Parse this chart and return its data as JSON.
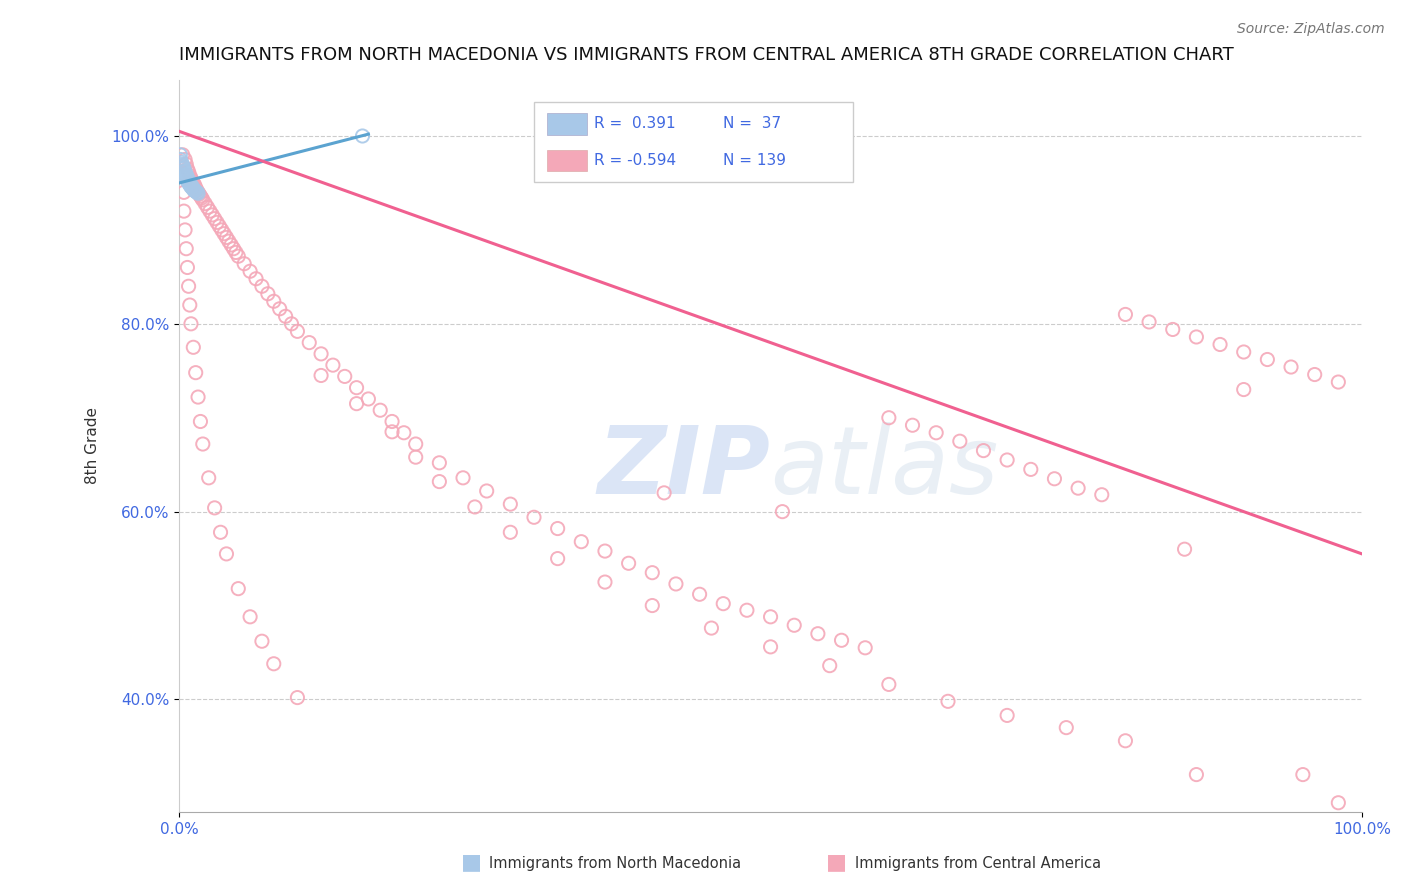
{
  "title": "IMMIGRANTS FROM NORTH MACEDONIA VS IMMIGRANTS FROM CENTRAL AMERICA 8TH GRADE CORRELATION CHART",
  "source": "Source: ZipAtlas.com",
  "ylabel": "8th Grade",
  "xlim": [
    0.0,
    1.0
  ],
  "ylim": [
    0.28,
    1.06
  ],
  "yticks": [
    0.4,
    0.6,
    0.8,
    1.0
  ],
  "ytick_labels": [
    "40.0%",
    "60.0%",
    "80.0%",
    "100.0%"
  ],
  "xticks": [
    0.0,
    1.0
  ],
  "xtick_labels": [
    "0.0%",
    "100.0%"
  ],
  "color_blue": "#a8c8e8",
  "color_pink": "#f4a8b8",
  "line_blue": "#5ba3d0",
  "line_pink": "#f06090",
  "title_fontsize": 13,
  "source_fontsize": 10,
  "watermark_text": "ZIPatlas",
  "watermark_color": "#c8d8f0",
  "background_color": "#ffffff",
  "grid_color": "#cccccc",
  "legend_text_color": "#4169E1",
  "blue_scatter_x": [
    0.001,
    0.002,
    0.003,
    0.003,
    0.004,
    0.005,
    0.005,
    0.006,
    0.006,
    0.007,
    0.007,
    0.008,
    0.008,
    0.009,
    0.01,
    0.01,
    0.011,
    0.012,
    0.012,
    0.013,
    0.014,
    0.015,
    0.016,
    0.002,
    0.003,
    0.004,
    0.005,
    0.006,
    0.007,
    0.008,
    0.009,
    0.01,
    0.011,
    0.012,
    0.013,
    0.155,
    0.001
  ],
  "blue_scatter_y": [
    0.975,
    0.97,
    0.968,
    0.965,
    0.963,
    0.96,
    0.958,
    0.957,
    0.955,
    0.954,
    0.952,
    0.951,
    0.95,
    0.948,
    0.947,
    0.946,
    0.945,
    0.944,
    0.943,
    0.942,
    0.941,
    0.94,
    0.939,
    0.972,
    0.969,
    0.966,
    0.962,
    0.959,
    0.956,
    0.953,
    0.95,
    0.948,
    0.946,
    0.944,
    0.942,
    1.0,
    0.98
  ],
  "blue_trend_x": [
    0.0,
    0.16
  ],
  "blue_trend_y": [
    0.95,
    1.002
  ],
  "pink_trend_x": [
    0.0,
    1.0
  ],
  "pink_trend_y": [
    1.005,
    0.555
  ],
  "pink_scatter_x": [
    0.005,
    0.006,
    0.007,
    0.008,
    0.009,
    0.01,
    0.011,
    0.012,
    0.013,
    0.014,
    0.015,
    0.016,
    0.017,
    0.018,
    0.019,
    0.02,
    0.022,
    0.024,
    0.026,
    0.028,
    0.03,
    0.032,
    0.034,
    0.036,
    0.038,
    0.04,
    0.042,
    0.044,
    0.046,
    0.048,
    0.05,
    0.055,
    0.06,
    0.065,
    0.07,
    0.075,
    0.08,
    0.085,
    0.09,
    0.095,
    0.1,
    0.11,
    0.12,
    0.13,
    0.14,
    0.15,
    0.16,
    0.17,
    0.18,
    0.19,
    0.2,
    0.22,
    0.24,
    0.26,
    0.28,
    0.3,
    0.32,
    0.34,
    0.36,
    0.38,
    0.4,
    0.42,
    0.44,
    0.46,
    0.48,
    0.5,
    0.52,
    0.54,
    0.56,
    0.58,
    0.6,
    0.62,
    0.64,
    0.66,
    0.68,
    0.7,
    0.72,
    0.74,
    0.76,
    0.78,
    0.8,
    0.82,
    0.84,
    0.86,
    0.88,
    0.9,
    0.92,
    0.94,
    0.96,
    0.98,
    0.003,
    0.003,
    0.004,
    0.004,
    0.005,
    0.006,
    0.007,
    0.008,
    0.009,
    0.01,
    0.012,
    0.014,
    0.016,
    0.018,
    0.02,
    0.025,
    0.03,
    0.035,
    0.04,
    0.05,
    0.06,
    0.07,
    0.08,
    0.1,
    0.12,
    0.15,
    0.18,
    0.2,
    0.22,
    0.25,
    0.28,
    0.32,
    0.36,
    0.4,
    0.45,
    0.5,
    0.55,
    0.6,
    0.65,
    0.7,
    0.75,
    0.8,
    0.85,
    0.9,
    0.95,
    0.98,
    0.41,
    0.51,
    0.86
  ],
  "pink_scatter_y": [
    0.975,
    0.97,
    0.965,
    0.962,
    0.958,
    0.955,
    0.952,
    0.95,
    0.948,
    0.945,
    0.942,
    0.94,
    0.938,
    0.936,
    0.934,
    0.932,
    0.928,
    0.924,
    0.92,
    0.916,
    0.912,
    0.908,
    0.904,
    0.9,
    0.896,
    0.892,
    0.888,
    0.884,
    0.88,
    0.876,
    0.872,
    0.864,
    0.856,
    0.848,
    0.84,
    0.832,
    0.824,
    0.816,
    0.808,
    0.8,
    0.792,
    0.78,
    0.768,
    0.756,
    0.744,
    0.732,
    0.72,
    0.708,
    0.696,
    0.684,
    0.672,
    0.652,
    0.636,
    0.622,
    0.608,
    0.594,
    0.582,
    0.568,
    0.558,
    0.545,
    0.535,
    0.523,
    0.512,
    0.502,
    0.495,
    0.488,
    0.479,
    0.47,
    0.463,
    0.455,
    0.7,
    0.692,
    0.684,
    0.675,
    0.665,
    0.655,
    0.645,
    0.635,
    0.625,
    0.618,
    0.81,
    0.802,
    0.794,
    0.786,
    0.778,
    0.77,
    0.762,
    0.754,
    0.746,
    0.738,
    0.98,
    0.96,
    0.94,
    0.92,
    0.9,
    0.88,
    0.86,
    0.84,
    0.82,
    0.8,
    0.775,
    0.748,
    0.722,
    0.696,
    0.672,
    0.636,
    0.604,
    0.578,
    0.555,
    0.518,
    0.488,
    0.462,
    0.438,
    0.402,
    0.745,
    0.715,
    0.685,
    0.658,
    0.632,
    0.605,
    0.578,
    0.55,
    0.525,
    0.5,
    0.476,
    0.456,
    0.436,
    0.416,
    0.398,
    0.383,
    0.37,
    0.356,
    0.56,
    0.73,
    0.32,
    0.29,
    0.62,
    0.6,
    0.32
  ]
}
